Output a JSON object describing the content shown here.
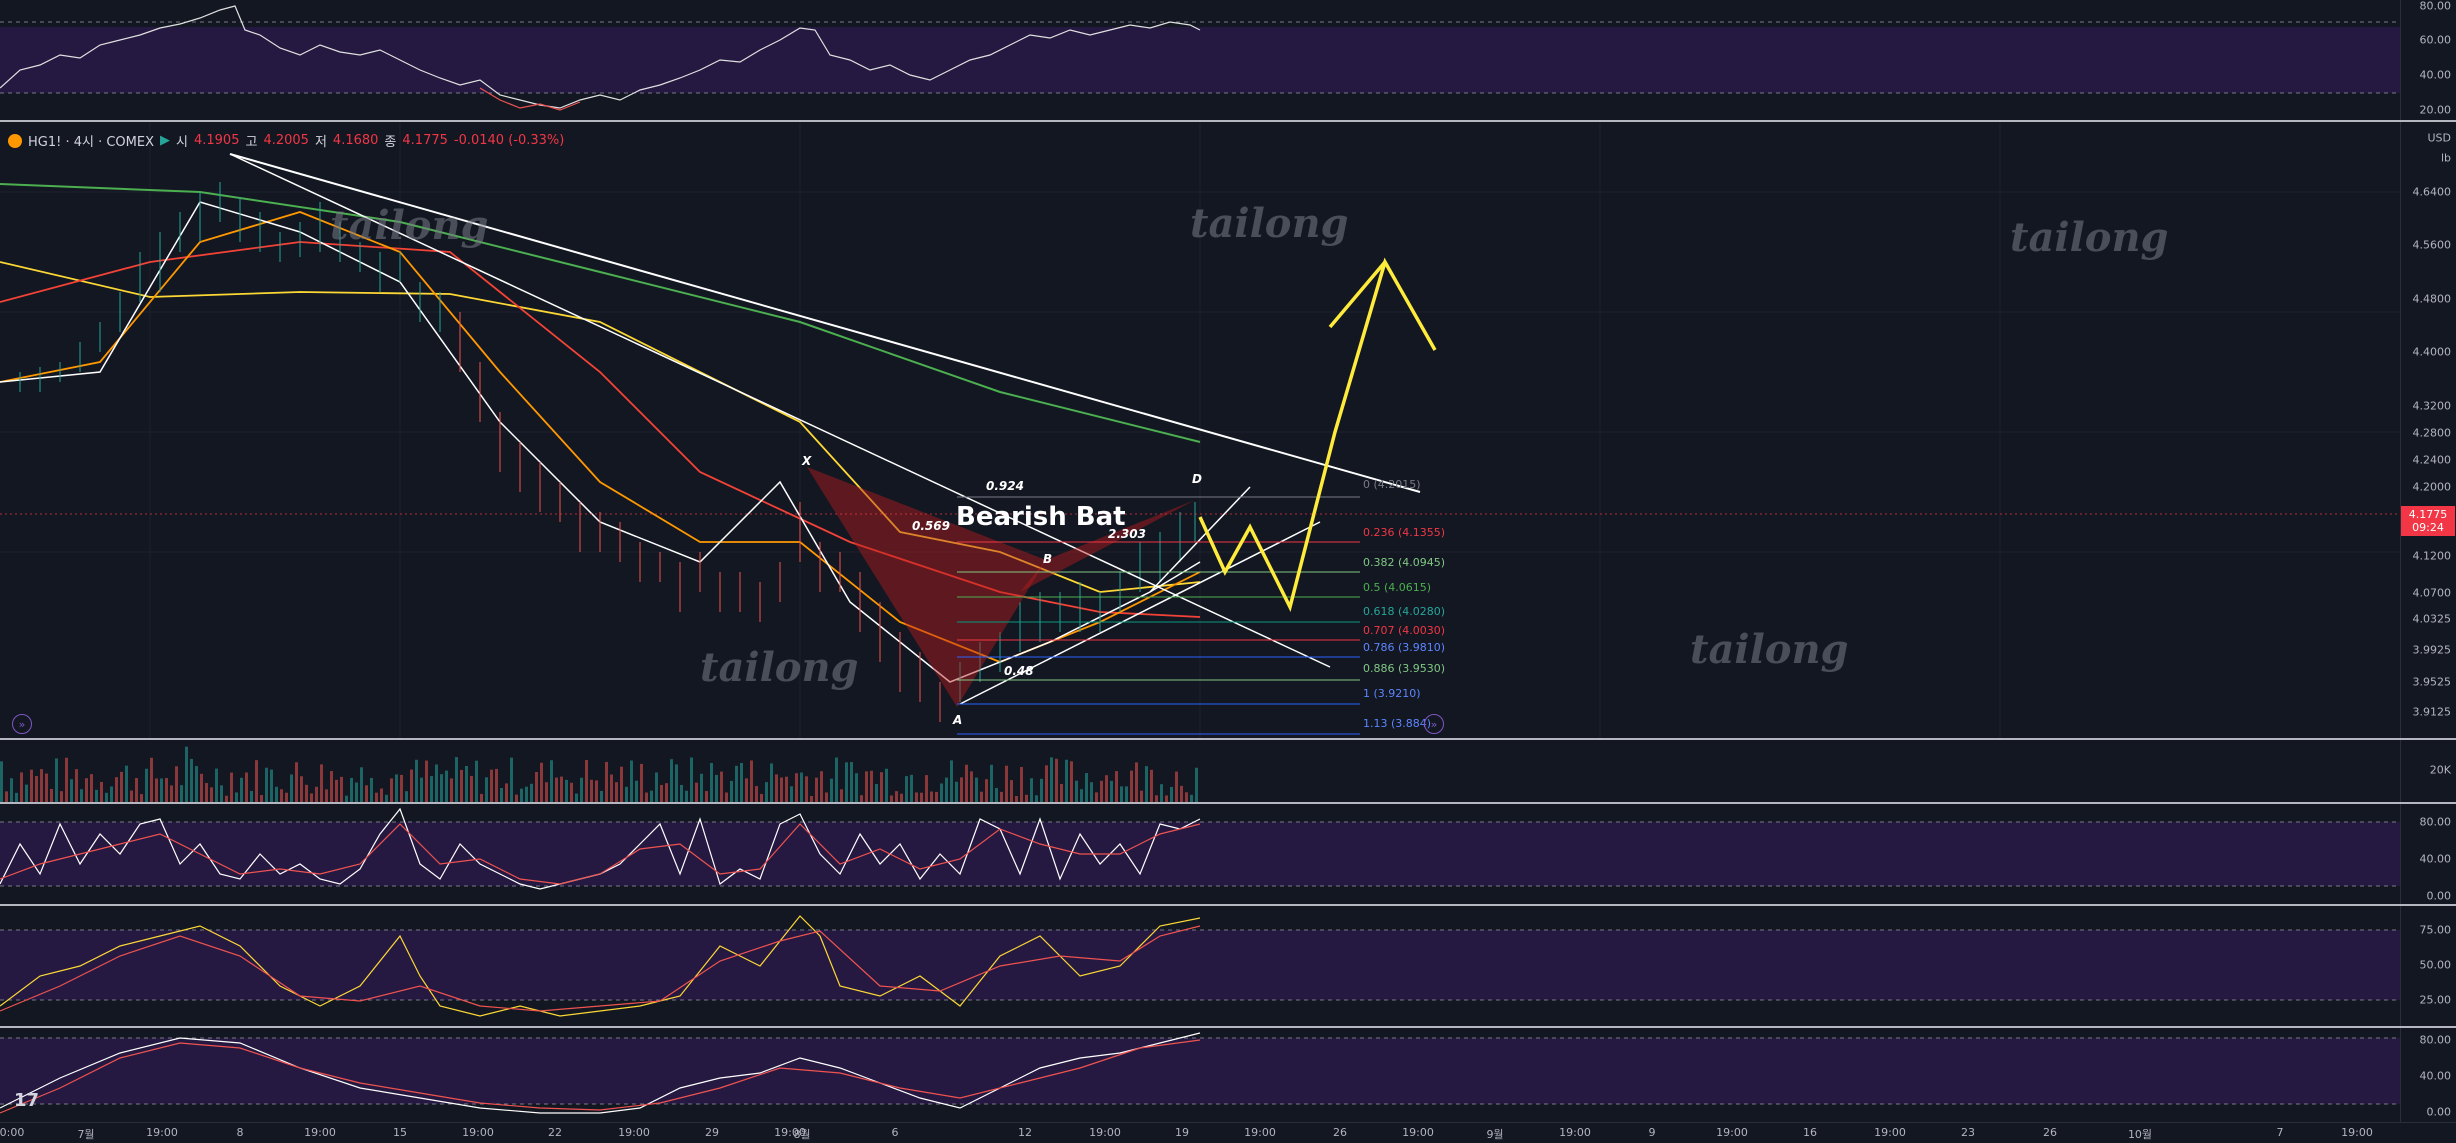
{
  "legend": {
    "symbol": "HG1! · 4시 · COMEX",
    "open_label": "시",
    "open": "4.1905",
    "high_label": "고",
    "high": "4.2005",
    "low_label": "저",
    "low": "4.1680",
    "close_label": "종",
    "close": "4.1775",
    "change": "-0.0140 (-0.33%)"
  },
  "price_axis": {
    "currency": "USD",
    "unit": "lb",
    "ticks": [
      "4.6400",
      "4.5600",
      "4.4800",
      "4.4000",
      "4.3200",
      "4.2800",
      "4.2400",
      "4.2000",
      "4.1200",
      "4.0700",
      "4.0325",
      "3.9925",
      "3.9525",
      "3.9125"
    ],
    "current_price": "4.1775",
    "countdown": "09:24"
  },
  "rsi_top_axis": {
    "ticks": [
      "80.00",
      "60.00",
      "40.00",
      "20.00"
    ]
  },
  "volume_axis": {
    "ticks": [
      "20K"
    ]
  },
  "osc1_axis": {
    "ticks": [
      "80.00",
      "40.00",
      "0.00"
    ]
  },
  "osc2_axis": {
    "ticks": [
      "75.00",
      "50.00",
      "25.00"
    ]
  },
  "osc3_axis": {
    "ticks": [
      "80.00",
      "40.00",
      "0.00"
    ]
  },
  "time_axis": {
    "labels": [
      "0:00",
      "7월",
      "19:00",
      "8",
      "19:00",
      "15",
      "19:00",
      "22",
      "19:00",
      "29",
      "19:00",
      "8월",
      "6",
      "12",
      "19:00",
      "19",
      "19:00",
      "26",
      "19:00",
      "9월",
      "19:00",
      "9",
      "19:00",
      "16",
      "19:00",
      "23",
      "26",
      "10월",
      "7",
      "19:00"
    ]
  },
  "pattern": {
    "title": "Bearish Bat",
    "points": {
      "x": "X",
      "a": "A",
      "b": "B",
      "d": "D"
    },
    "ratios": {
      "xb": "0.569",
      "ac": "0.48",
      "top": "0.924",
      "bd": "2.303"
    }
  },
  "fib_levels": [
    {
      "label": "0 (4.2015)",
      "color": "#787b86"
    },
    {
      "label": "0.236 (4.1355)",
      "color": "#f23645"
    },
    {
      "label": "0.382 (4.0945)",
      "color": "#81c784"
    },
    {
      "label": "0.5 (4.0615)",
      "color": "#4caf50"
    },
    {
      "label": "0.618 (4.0280)",
      "color": "#089981"
    },
    {
      "label": "0.707 (4.0030)",
      "color": "#f23645"
    },
    {
      "label": "0.786 (3.9810)",
      "color": "#2962ff"
    },
    {
      "label": "0.886 (3.9530)",
      "color": "#81c784"
    },
    {
      "label": "1 (3.9210)",
      "color": "#2962ff"
    },
    {
      "label": "1.13 (3.884)",
      "color": "#2962ff"
    }
  ],
  "watermarks": [
    "tailong",
    "tailong",
    "tailong",
    "tailong",
    "tailong"
  ],
  "colors": {
    "background": "#131722",
    "panel_band": "#2a1a4a",
    "up": "#26a69a",
    "down": "#ef5350",
    "projection": "#ffeb3b"
  },
  "icons": {
    "goto_left": "double-arrow-right-icon",
    "goto_right": "double-arrow-right-icon",
    "logo": "tv-logo-icon"
  }
}
